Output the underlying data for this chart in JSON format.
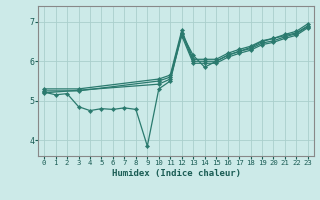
{
  "xlabel": "Humidex (Indice chaleur)",
  "bg_color": "#cceae8",
  "line_color": "#2a7a6e",
  "grid_color": "#aacfcc",
  "xlim": [
    -0.5,
    23.5
  ],
  "ylim": [
    3.6,
    7.4
  ],
  "yticks": [
    4,
    5,
    6,
    7
  ],
  "xticks": [
    0,
    1,
    2,
    3,
    4,
    5,
    6,
    7,
    8,
    9,
    10,
    11,
    12,
    13,
    14,
    15,
    16,
    17,
    18,
    19,
    20,
    21,
    22,
    23
  ],
  "lines": [
    {
      "x": [
        0,
        1,
        2,
        3,
        4,
        5,
        6,
        7,
        8,
        9,
        10,
        11,
        12,
        13,
        14,
        15,
        16,
        17,
        18,
        19,
        20,
        21,
        22,
        23
      ],
      "y": [
        5.22,
        5.15,
        5.18,
        4.85,
        4.75,
        4.8,
        4.78,
        4.82,
        4.78,
        3.85,
        5.3,
        5.5,
        6.7,
        6.15,
        5.85,
        6.0,
        6.15,
        6.25,
        6.35,
        6.5,
        6.58,
        6.65,
        6.72,
        6.9
      ]
    },
    {
      "x": [
        0,
        3,
        10,
        11,
        12,
        13,
        14,
        15,
        16,
        17,
        18,
        19,
        20,
        21,
        22,
        23
      ],
      "y": [
        5.3,
        5.3,
        5.55,
        5.65,
        6.78,
        6.05,
        6.05,
        6.05,
        6.2,
        6.3,
        6.38,
        6.52,
        6.58,
        6.68,
        6.76,
        6.95
      ]
    },
    {
      "x": [
        0,
        3,
        10,
        11,
        12,
        13,
        14,
        15,
        16,
        17,
        18,
        19,
        20,
        21,
        22,
        23
      ],
      "y": [
        5.25,
        5.25,
        5.5,
        5.6,
        6.72,
        6.0,
        6.0,
        6.0,
        6.15,
        6.25,
        6.32,
        6.46,
        6.52,
        6.62,
        6.7,
        6.88
      ]
    },
    {
      "x": [
        0,
        10,
        11,
        12,
        13,
        14,
        15,
        16,
        17,
        18,
        19,
        20,
        21,
        22,
        23
      ],
      "y": [
        5.2,
        5.42,
        5.55,
        6.65,
        5.95,
        5.95,
        5.95,
        6.1,
        6.2,
        6.28,
        6.42,
        6.48,
        6.58,
        6.66,
        6.85
      ]
    }
  ]
}
